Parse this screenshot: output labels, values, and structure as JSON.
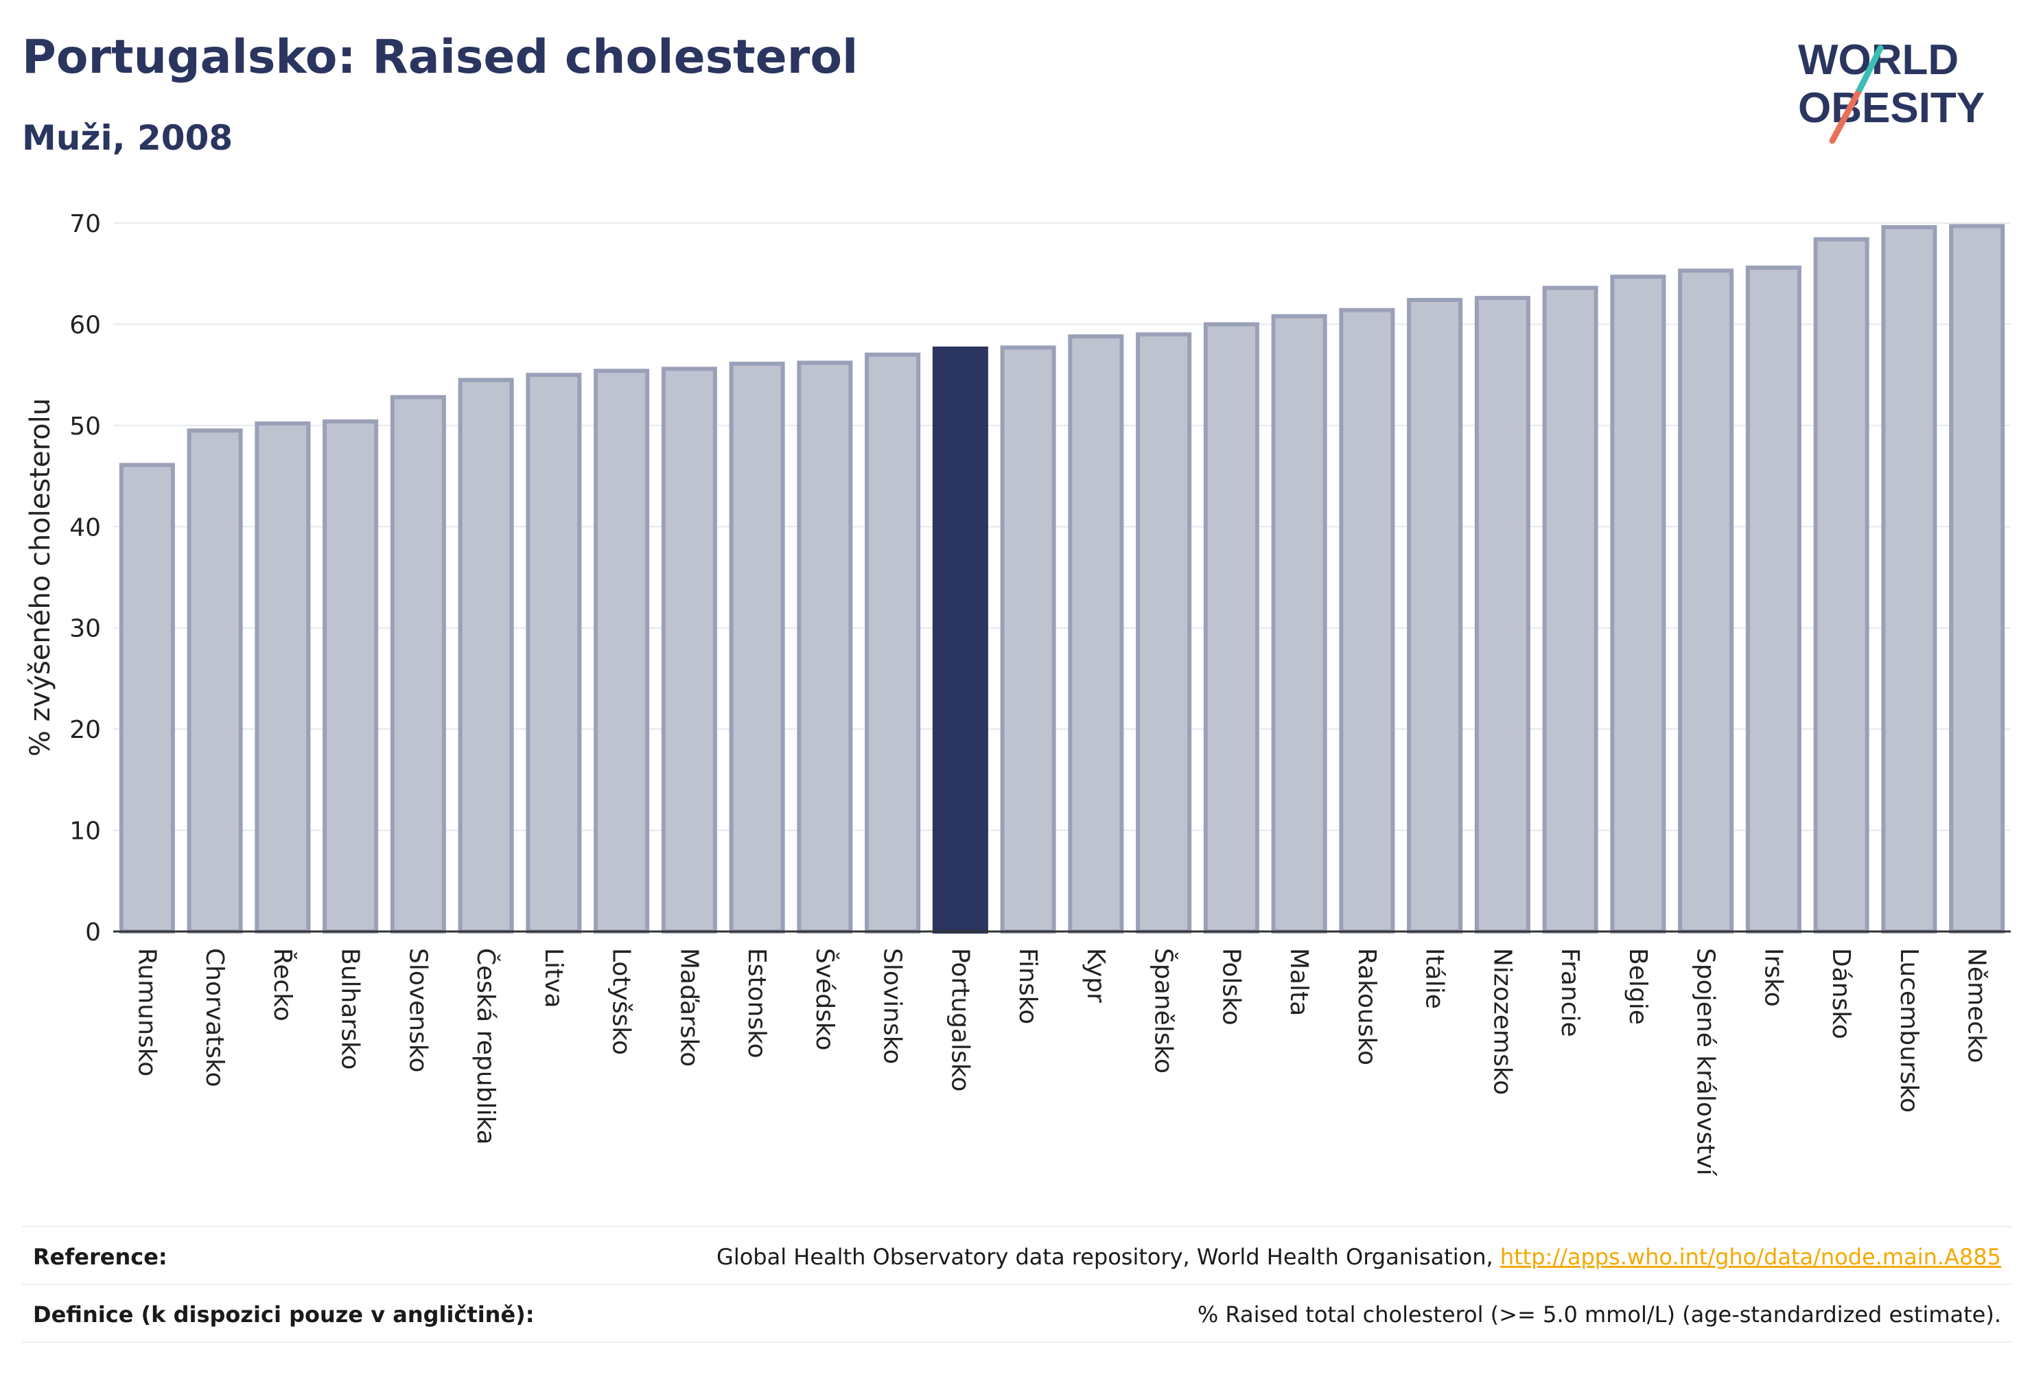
{
  "header": {
    "title": "Portugalsko: Raised cholesterol",
    "subtitle": "Muži, 2008"
  },
  "logo": {
    "line1": "WORLD",
    "line2": "OBESITY"
  },
  "chart_data": {
    "type": "bar",
    "ylabel": "% zvýšeného cholesterolu",
    "ylim": [
      0,
      70
    ],
    "yticks": [
      0,
      10,
      20,
      30,
      40,
      50,
      60,
      70
    ],
    "grid": true,
    "highlight": "Portugalsko",
    "colors": {
      "bar": "#bfc3d0",
      "bar_stroke": "#9aa0b8",
      "highlight": "#2a3560"
    },
    "categories": [
      "Rumunsko",
      "Chorvatsko",
      "Řecko",
      "Bulharsko",
      "Slovensko",
      "Česká republika",
      "Litva",
      "Lotyšsko",
      "Maďarsko",
      "Estonsko",
      "Švédsko",
      "Slovinsko",
      "Portugalsko",
      "Finsko",
      "Kypr",
      "Španělsko",
      "Polsko",
      "Malta",
      "Rakousko",
      "Itálie",
      "Nizozemsko",
      "Francie",
      "Belgie",
      "Spojené království",
      "Irsko",
      "Dánsko",
      "Lucembursko",
      "Německo"
    ],
    "values": [
      46.1,
      49.5,
      50.2,
      50.4,
      52.8,
      54.5,
      55.0,
      55.4,
      55.6,
      56.1,
      56.2,
      57.0,
      57.6,
      57.7,
      58.8,
      59.0,
      60.0,
      60.8,
      61.4,
      62.4,
      62.6,
      63.6,
      64.7,
      65.3,
      65.6,
      68.4,
      69.6,
      69.7
    ]
  },
  "reference": {
    "label": "Reference:",
    "text": "Global Health Observatory data repository, World Health Organisation, ",
    "link": "http://apps.who.int/gho/data/node.main.A885"
  },
  "definition": {
    "label": "Definice (k dispozici pouze v angličtině):",
    "text": "% Raised total cholesterol (>= 5.0 mmol/L) (age-standardized estimate)."
  }
}
